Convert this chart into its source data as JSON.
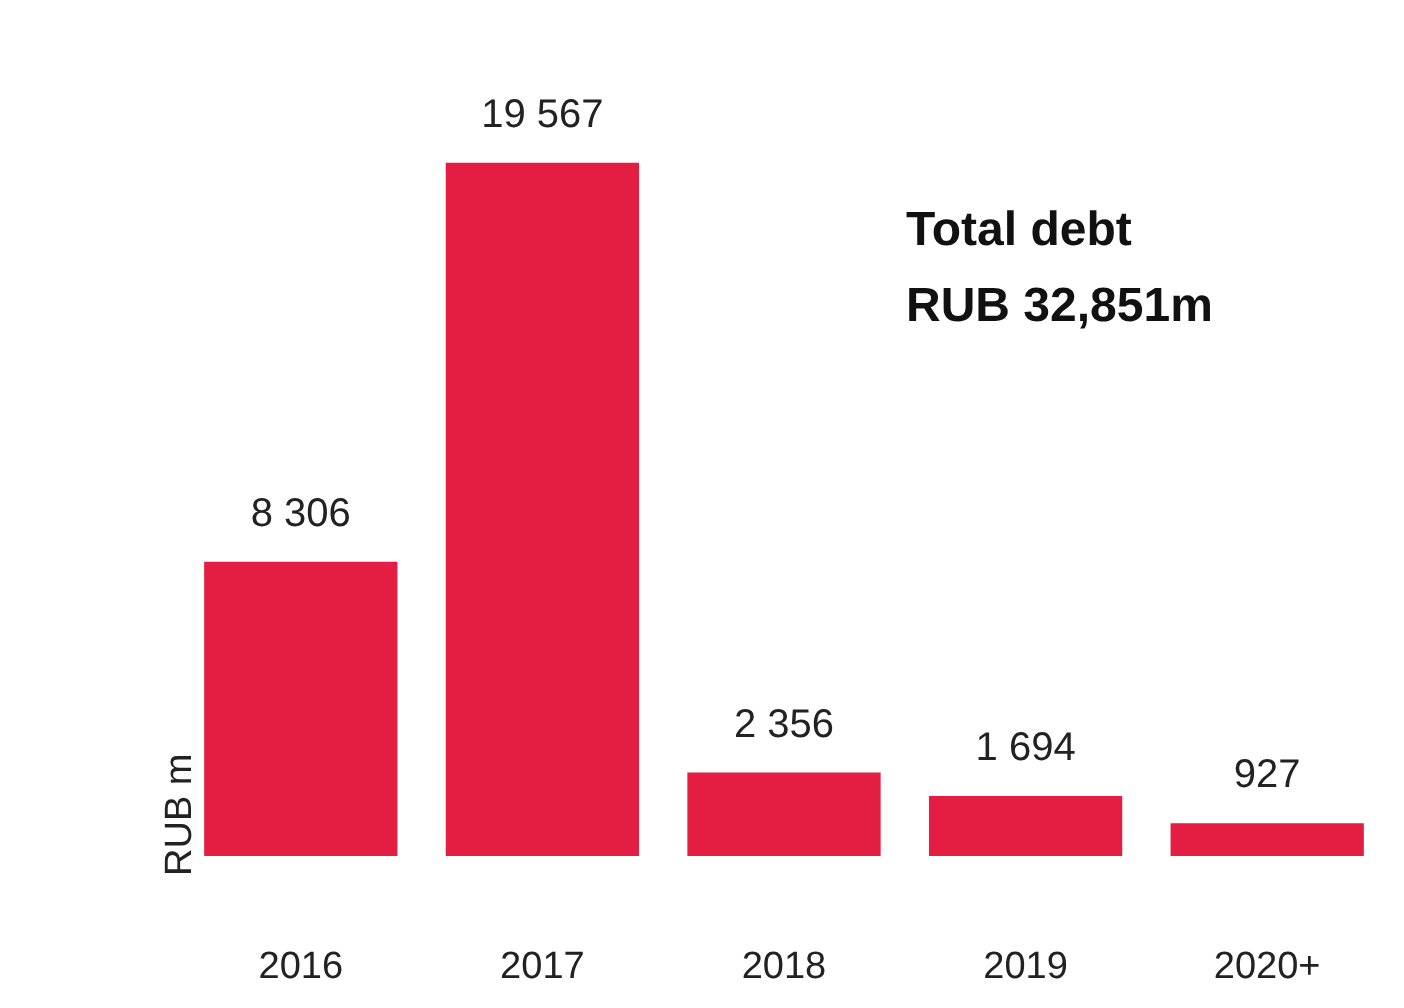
{
  "chart_data": {
    "type": "bar",
    "ylabel": "RUB m",
    "categories": [
      "2016",
      "2017",
      "2018",
      "2019",
      "2020+"
    ],
    "values": [
      8306,
      19567,
      2356,
      1694,
      927
    ],
    "color": "#e31e42",
    "value_labels": [
      "8 306",
      "19 567",
      "2 356",
      "1 694",
      "927"
    ],
    "annotations": [
      "Total debt\nRUB 32,851m"
    ]
  }
}
